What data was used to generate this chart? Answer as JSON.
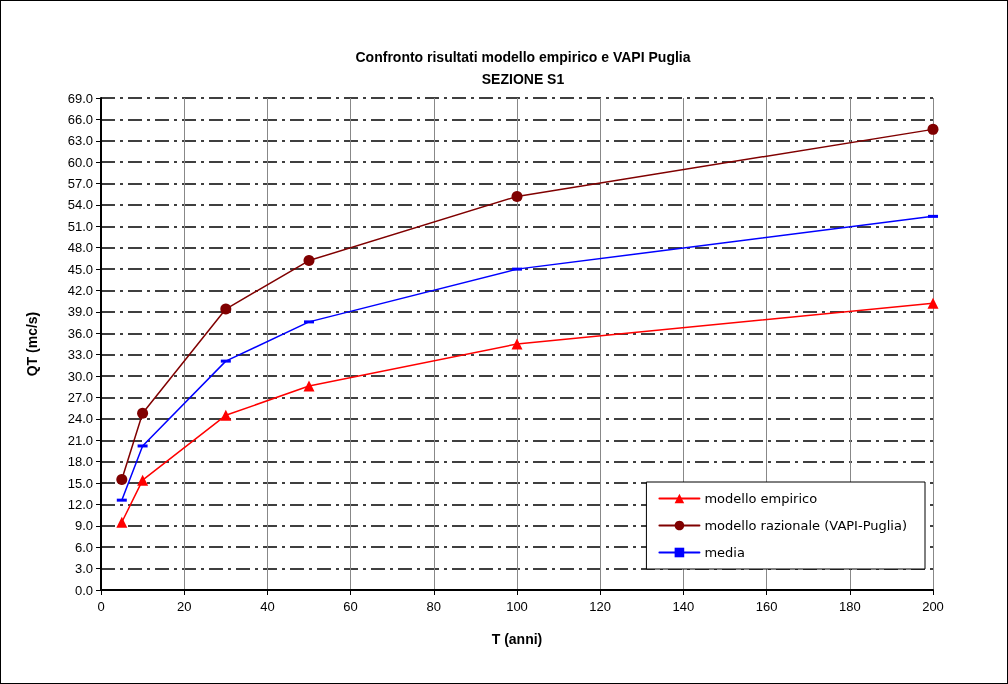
{
  "chart_data": {
    "type": "line",
    "title": "Confronto risultati modello empirico e VAPI Puglia",
    "subtitle": "SEZIONE S1",
    "xlabel": "T (anni)",
    "ylabel": "QT (mc/s)",
    "x": [
      5,
      10,
      30,
      50,
      100,
      200
    ],
    "series": [
      {
        "name": "modello empirico",
        "color": "#ff0000",
        "marker": "triangle",
        "values": [
          9.5,
          15.4,
          24.5,
          28.6,
          34.5,
          40.2
        ]
      },
      {
        "name": "modello razionale (VAPI-Puglia)",
        "color": "#800000",
        "marker": "circle",
        "values": [
          15.5,
          24.8,
          39.4,
          46.2,
          55.2,
          64.6
        ]
      },
      {
        "name": "media",
        "color": "#0000ff",
        "marker": "square",
        "values": [
          12.6,
          20.2,
          32.1,
          37.6,
          45.0,
          52.4
        ]
      }
    ],
    "xlim": [
      0,
      200
    ],
    "xticks": [
      0,
      20,
      40,
      60,
      80,
      100,
      120,
      140,
      160,
      180,
      200
    ],
    "ylim": [
      0,
      69
    ],
    "yticks": [
      {
        "value": 0,
        "label": "0.0"
      },
      {
        "value": 3,
        "label": "3.0"
      },
      {
        "value": 6,
        "label": "6.0"
      },
      {
        "value": 9,
        "label": "9.0"
      },
      {
        "value": 12,
        "label": "12.0"
      },
      {
        "value": 15,
        "label": "15.0"
      },
      {
        "value": 18,
        "label": "18.0"
      },
      {
        "value": 21,
        "label": "21.0"
      },
      {
        "value": 24,
        "label": "24.0"
      },
      {
        "value": 27,
        "label": "27.0"
      },
      {
        "value": 30,
        "label": "30.0"
      },
      {
        "value": 33,
        "label": "33.0"
      },
      {
        "value": 36,
        "label": "36.0"
      },
      {
        "value": 39,
        "label": "39.0"
      },
      {
        "value": 42,
        "label": "42.0"
      },
      {
        "value": 45,
        "label": "45.0"
      },
      {
        "value": 48,
        "label": "48.0"
      },
      {
        "value": 51,
        "label": "51.0"
      },
      {
        "value": 54,
        "label": "54.0"
      },
      {
        "value": 57,
        "label": "57.0"
      },
      {
        "value": 60,
        "label": "60.0"
      },
      {
        "value": 63,
        "label": "63.0"
      },
      {
        "value": 66,
        "label": "66.0"
      },
      {
        "value": 69,
        "label": "69.0"
      }
    ],
    "grid": true,
    "legend": "bottom right",
    "line_style": "solid"
  }
}
